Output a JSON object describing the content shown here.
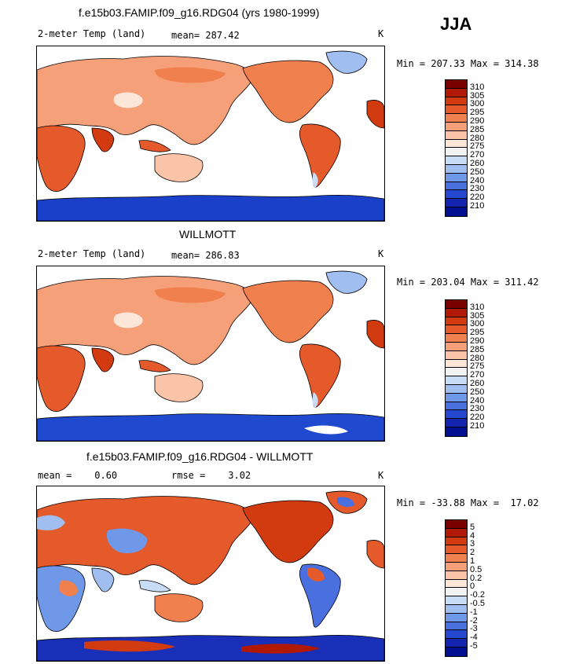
{
  "season": "JJA",
  "panels": [
    {
      "title": "f.e15b03.FAMIP.f09_g16.RDG04 (yrs 1980-1999)",
      "variable": "2-meter Temp (land)",
      "stat1": "mean= 287.42",
      "stat2": "",
      "units": "K",
      "minmax": "Min = 207.33 Max = 314.38",
      "levels": [
        "310",
        "305",
        "300",
        "295",
        "290",
        "285",
        "280",
        "275",
        "270",
        "260",
        "250",
        "240",
        "230",
        "220",
        "210"
      ],
      "colors": [
        "#7a0000",
        "#b01800",
        "#d23a10",
        "#e45a2a",
        "#f0804e",
        "#f6a07a",
        "#fac4a8",
        "#fbe6d8",
        "#f2f2f2",
        "#c8dcf6",
        "#a0bef0",
        "#7098e8",
        "#4a70e0",
        "#2448d0",
        "#1426b0",
        "#001090"
      ],
      "antarctic_color": "#1a3fc8"
    },
    {
      "title": "WILLMOTT",
      "variable": "2-meter Temp (land)",
      "stat1": "mean= 286.83",
      "stat2": "",
      "units": "K",
      "minmax": "Min = 203.04 Max = 311.42",
      "levels": [
        "310",
        "305",
        "300",
        "295",
        "290",
        "285",
        "280",
        "275",
        "270",
        "260",
        "250",
        "240",
        "230",
        "220",
        "210"
      ],
      "colors": [
        "#7a0000",
        "#b01800",
        "#d23a10",
        "#e45a2a",
        "#f0804e",
        "#f6a07a",
        "#fac4a8",
        "#fbe6d8",
        "#f2f2f2",
        "#c8dcf6",
        "#a0bef0",
        "#7098e8",
        "#4a70e0",
        "#2448d0",
        "#1426b0",
        "#001090"
      ],
      "antarctic_color": "#1f4ad0"
    },
    {
      "title": "f.e15b03.FAMIP.f09_g16.RDG04 - WILLMOTT",
      "variable": "",
      "stat1": "mean =    0.60",
      "stat2": "rmse =    3.02",
      "units": "K",
      "minmax": "Min = -33.88 Max =  17.02",
      "levels": [
        "5",
        "4",
        "3",
        "2",
        "1",
        "0.5",
        "0.2",
        "0",
        "-0.2",
        "-0.5",
        "-1",
        "-2",
        "-3",
        "-4",
        "-5"
      ],
      "colors": [
        "#7a0000",
        "#b01800",
        "#d23a10",
        "#e45a2a",
        "#f0804e",
        "#f6a07a",
        "#fac4a8",
        "#fbe6d8",
        "#f2f2f2",
        "#c8dcf6",
        "#a0bef0",
        "#7098e8",
        "#4a70e0",
        "#2448d0",
        "#1426b0",
        "#001090"
      ],
      "antarctic_color": "#1a2fb8"
    }
  ]
}
